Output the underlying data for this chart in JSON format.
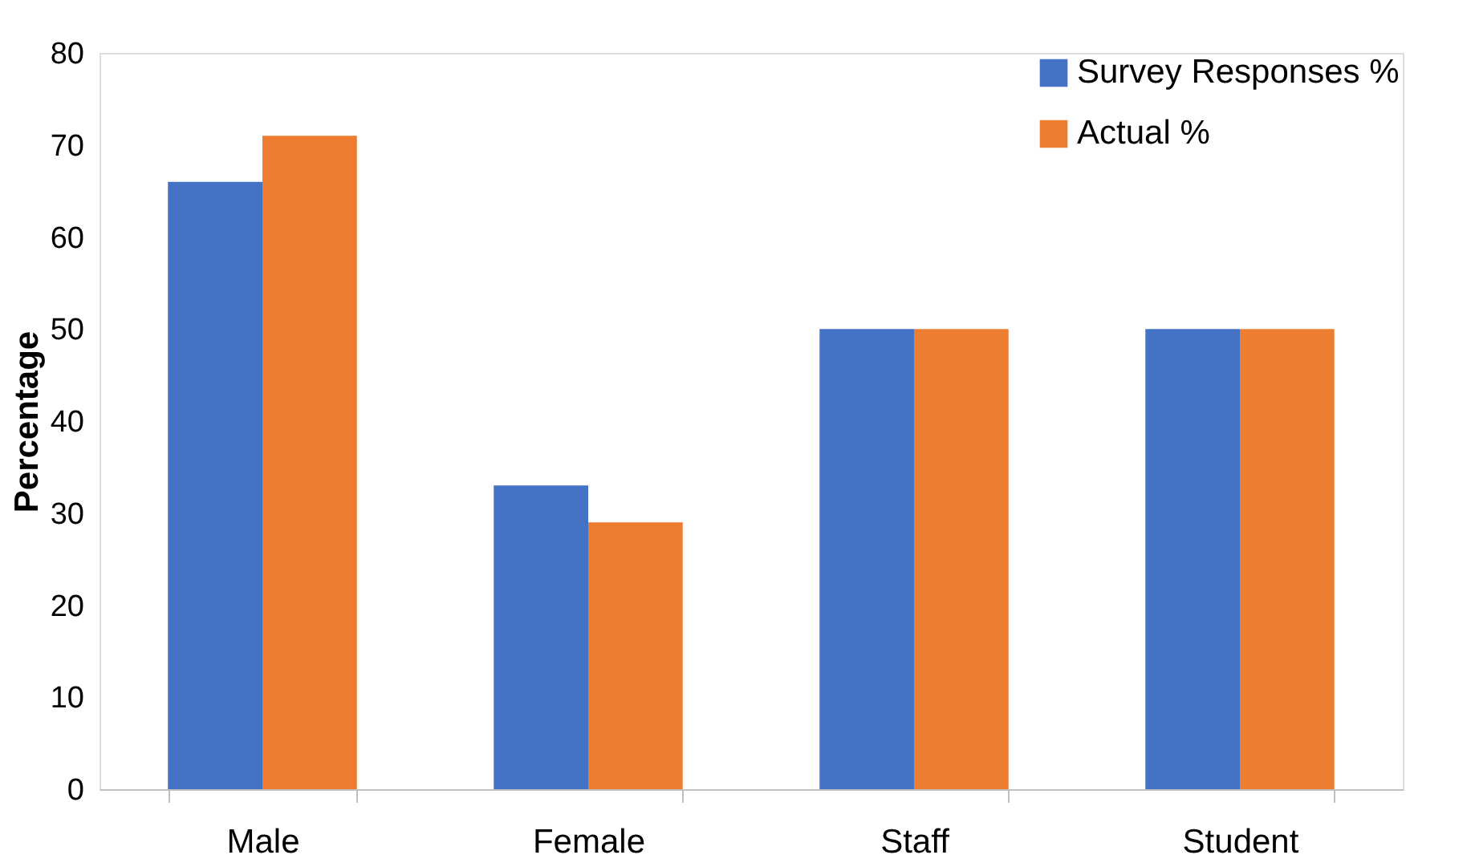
{
  "chart_data": {
    "type": "bar",
    "ylabel": "Percentage",
    "categories": [
      "Male",
      "Female",
      "Staff",
      "Student"
    ],
    "series": [
      {
        "name": "Survey Responses %",
        "color": "#4472c4",
        "values": [
          66,
          33,
          50,
          50
        ]
      },
      {
        "name": "Actual %",
        "color": "#ed7d31",
        "values": [
          71,
          29,
          50,
          50
        ]
      }
    ],
    "ylim": [
      0,
      80
    ],
    "yticks": [
      0,
      10,
      20,
      30,
      40,
      50,
      60,
      70,
      80
    ],
    "grid": false,
    "legend": "top right"
  }
}
